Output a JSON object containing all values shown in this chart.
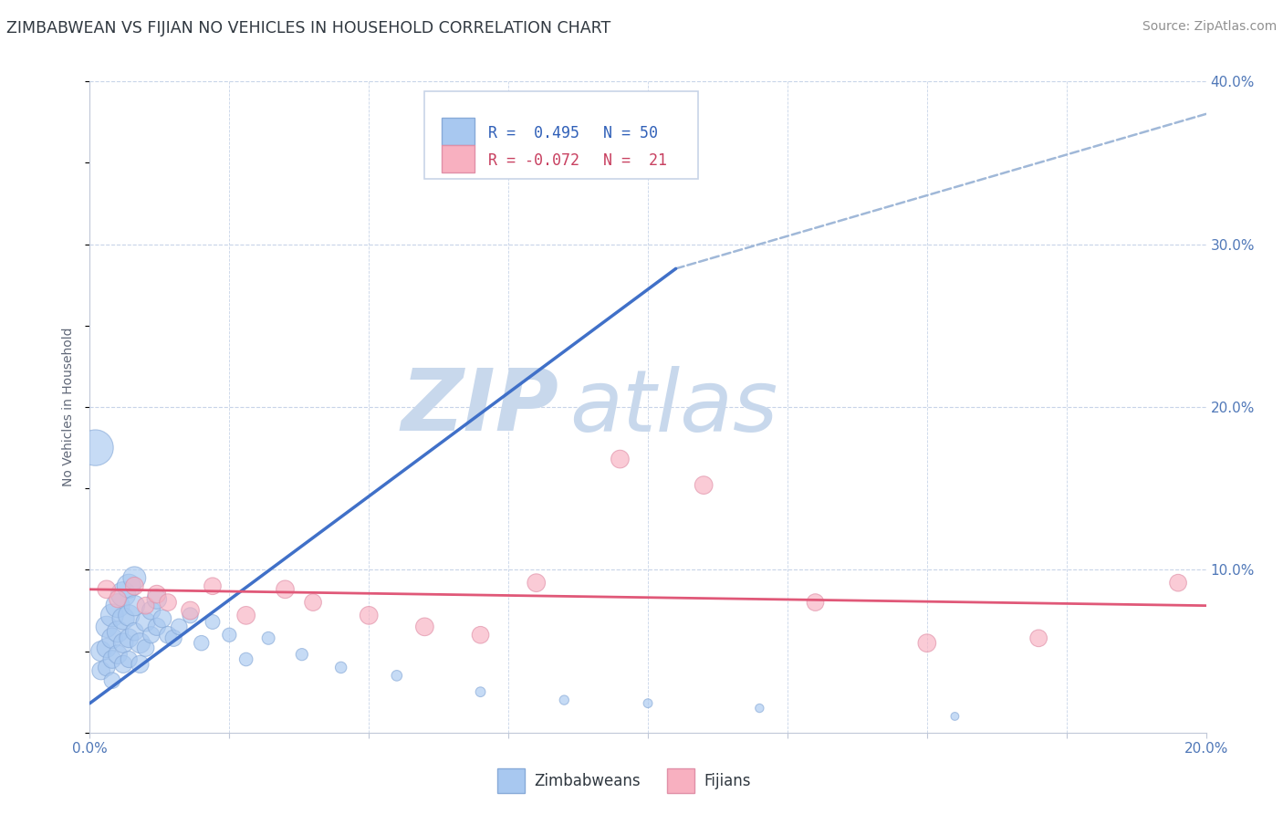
{
  "title": "ZIMBABWEAN VS FIJIAN NO VEHICLES IN HOUSEHOLD CORRELATION CHART",
  "source": "Source: ZipAtlas.com",
  "ylabel": "No Vehicles in Household",
  "xlim": [
    0.0,
    0.2
  ],
  "ylim": [
    0.0,
    0.4
  ],
  "legend_r1": "R =  0.495",
  "legend_n1": "N = 50",
  "legend_r2": "R = -0.072",
  "legend_n2": "N =  21",
  "blue_color": "#a8c8f0",
  "blue_edge_color": "#88aad8",
  "pink_color": "#f8b0c0",
  "pink_edge_color": "#e090a8",
  "blue_line_color": "#4070c8",
  "pink_line_color": "#e05878",
  "dashed_line_color": "#a0b8d8",
  "watermark_zip": "ZIP",
  "watermark_atlas": "atlas",
  "watermark_color": "#c8d8ec",
  "background_color": "#ffffff",
  "grid_color": "#c8d4e8",
  "blue_trendline_x": [
    0.0,
    0.105
  ],
  "blue_trendline_y": [
    0.018,
    0.285
  ],
  "dashed_trendline_x": [
    0.105,
    0.2
  ],
  "dashed_trendline_y": [
    0.285,
    0.38
  ],
  "pink_trendline_x": [
    0.0,
    0.2
  ],
  "pink_trendline_y": [
    0.088,
    0.078
  ],
  "zimbabweans_x": [
    0.001,
    0.002,
    0.002,
    0.003,
    0.003,
    0.003,
    0.004,
    0.004,
    0.004,
    0.004,
    0.005,
    0.005,
    0.005,
    0.006,
    0.006,
    0.006,
    0.006,
    0.007,
    0.007,
    0.007,
    0.007,
    0.008,
    0.008,
    0.008,
    0.009,
    0.009,
    0.01,
    0.01,
    0.011,
    0.011,
    0.012,
    0.012,
    0.013,
    0.014,
    0.015,
    0.016,
    0.018,
    0.02,
    0.022,
    0.025,
    0.028,
    0.032,
    0.038,
    0.045,
    0.055,
    0.07,
    0.085,
    0.1,
    0.12,
    0.155
  ],
  "zimbabweans_y": [
    0.175,
    0.05,
    0.038,
    0.065,
    0.052,
    0.04,
    0.072,
    0.058,
    0.045,
    0.032,
    0.078,
    0.062,
    0.048,
    0.085,
    0.07,
    0.055,
    0.042,
    0.09,
    0.072,
    0.058,
    0.045,
    0.095,
    0.078,
    0.062,
    0.055,
    0.042,
    0.068,
    0.052,
    0.075,
    0.06,
    0.082,
    0.065,
    0.07,
    0.06,
    0.058,
    0.065,
    0.072,
    0.055,
    0.068,
    0.06,
    0.045,
    0.058,
    0.048,
    0.04,
    0.035,
    0.025,
    0.02,
    0.018,
    0.015,
    0.01
  ],
  "zimbabweans_sizes": [
    800,
    250,
    200,
    280,
    230,
    180,
    320,
    260,
    200,
    160,
    350,
    280,
    220,
    380,
    300,
    240,
    190,
    350,
    280,
    220,
    170,
    320,
    260,
    200,
    250,
    190,
    230,
    180,
    210,
    170,
    240,
    190,
    200,
    180,
    170,
    160,
    150,
    140,
    130,
    120,
    110,
    100,
    90,
    80,
    70,
    60,
    55,
    50,
    45,
    40
  ],
  "fijians_x": [
    0.003,
    0.005,
    0.008,
    0.01,
    0.012,
    0.014,
    0.018,
    0.022,
    0.028,
    0.035,
    0.04,
    0.05,
    0.06,
    0.07,
    0.08,
    0.095,
    0.11,
    0.13,
    0.15,
    0.17,
    0.195
  ],
  "fijians_y": [
    0.088,
    0.082,
    0.09,
    0.078,
    0.085,
    0.08,
    0.075,
    0.09,
    0.072,
    0.088,
    0.08,
    0.072,
    0.065,
    0.06,
    0.092,
    0.168,
    0.152,
    0.08,
    0.055,
    0.058,
    0.092
  ],
  "fijians_sizes": [
    200,
    180,
    200,
    180,
    200,
    180,
    200,
    180,
    200,
    200,
    180,
    200,
    200,
    180,
    200,
    200,
    200,
    180,
    200,
    180,
    180
  ]
}
